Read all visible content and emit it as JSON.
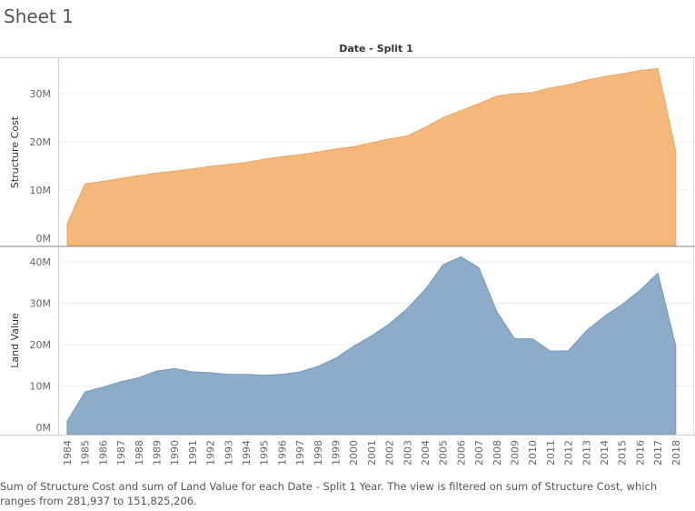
{
  "sheet": {
    "title": "Sheet 1",
    "caption": "Sum of Structure Cost and sum of Land Value for each Date - Split 1 Year.  The view is filtered on sum of Structure Cost, which ranges from 281,937 to 151,825,206."
  },
  "chart_data": {
    "type": "area",
    "title": "Date - Split 1",
    "x": [
      "1984",
      "1985",
      "1986",
      "1987",
      "1988",
      "1989",
      "1990",
      "1991",
      "1992",
      "1993",
      "1994",
      "1995",
      "1996",
      "1997",
      "1998",
      "1999",
      "2000",
      "2001",
      "2002",
      "2003",
      "2004",
      "2005",
      "2006",
      "2007",
      "2008",
      "2009",
      "2010",
      "2011",
      "2012",
      "2013",
      "2014",
      "2015",
      "2016",
      "2017",
      "2018"
    ],
    "panels": [
      {
        "ylabel": "Structure Cost",
        "color": "#f5b87b",
        "stroke": "#eaa45f",
        "ylim": [
          0,
          36500000
        ],
        "ticks": [
          0,
          10000000,
          20000000,
          30000000
        ],
        "tick_labels": [
          "0M",
          "10M",
          "20M",
          "30M"
        ],
        "values": [
          3000000,
          11300000,
          11800000,
          12400000,
          13000000,
          13500000,
          13900000,
          14400000,
          14900000,
          15300000,
          15700000,
          16400000,
          16900000,
          17300000,
          17900000,
          18500000,
          19000000,
          19800000,
          20600000,
          21200000,
          23000000,
          25000000,
          26500000,
          27900000,
          29500000,
          30000000,
          30200000,
          31200000,
          31800000,
          32800000,
          33500000,
          34100000,
          34800000,
          35200000,
          18000000
        ]
      },
      {
        "ylabel": "Land Value",
        "color": "#8dacc9",
        "stroke": "#7297ba",
        "ylim": [
          0,
          42800000
        ],
        "ticks": [
          0,
          10000000,
          20000000,
          30000000,
          40000000
        ],
        "tick_labels": [
          "0M",
          "10M",
          "20M",
          "30M",
          "40M"
        ],
        "values": [
          1500000,
          8600000,
          9700000,
          11000000,
          12000000,
          13600000,
          14200000,
          13400000,
          13200000,
          12800000,
          12800000,
          12600000,
          12800000,
          13400000,
          14700000,
          16700000,
          19600000,
          22100000,
          25000000,
          28700000,
          33300000,
          39300000,
          41200000,
          38600000,
          28000000,
          21400000,
          21400000,
          18400000,
          18500000,
          23300000,
          26800000,
          29700000,
          33100000,
          37300000,
          19700000
        ]
      }
    ]
  }
}
